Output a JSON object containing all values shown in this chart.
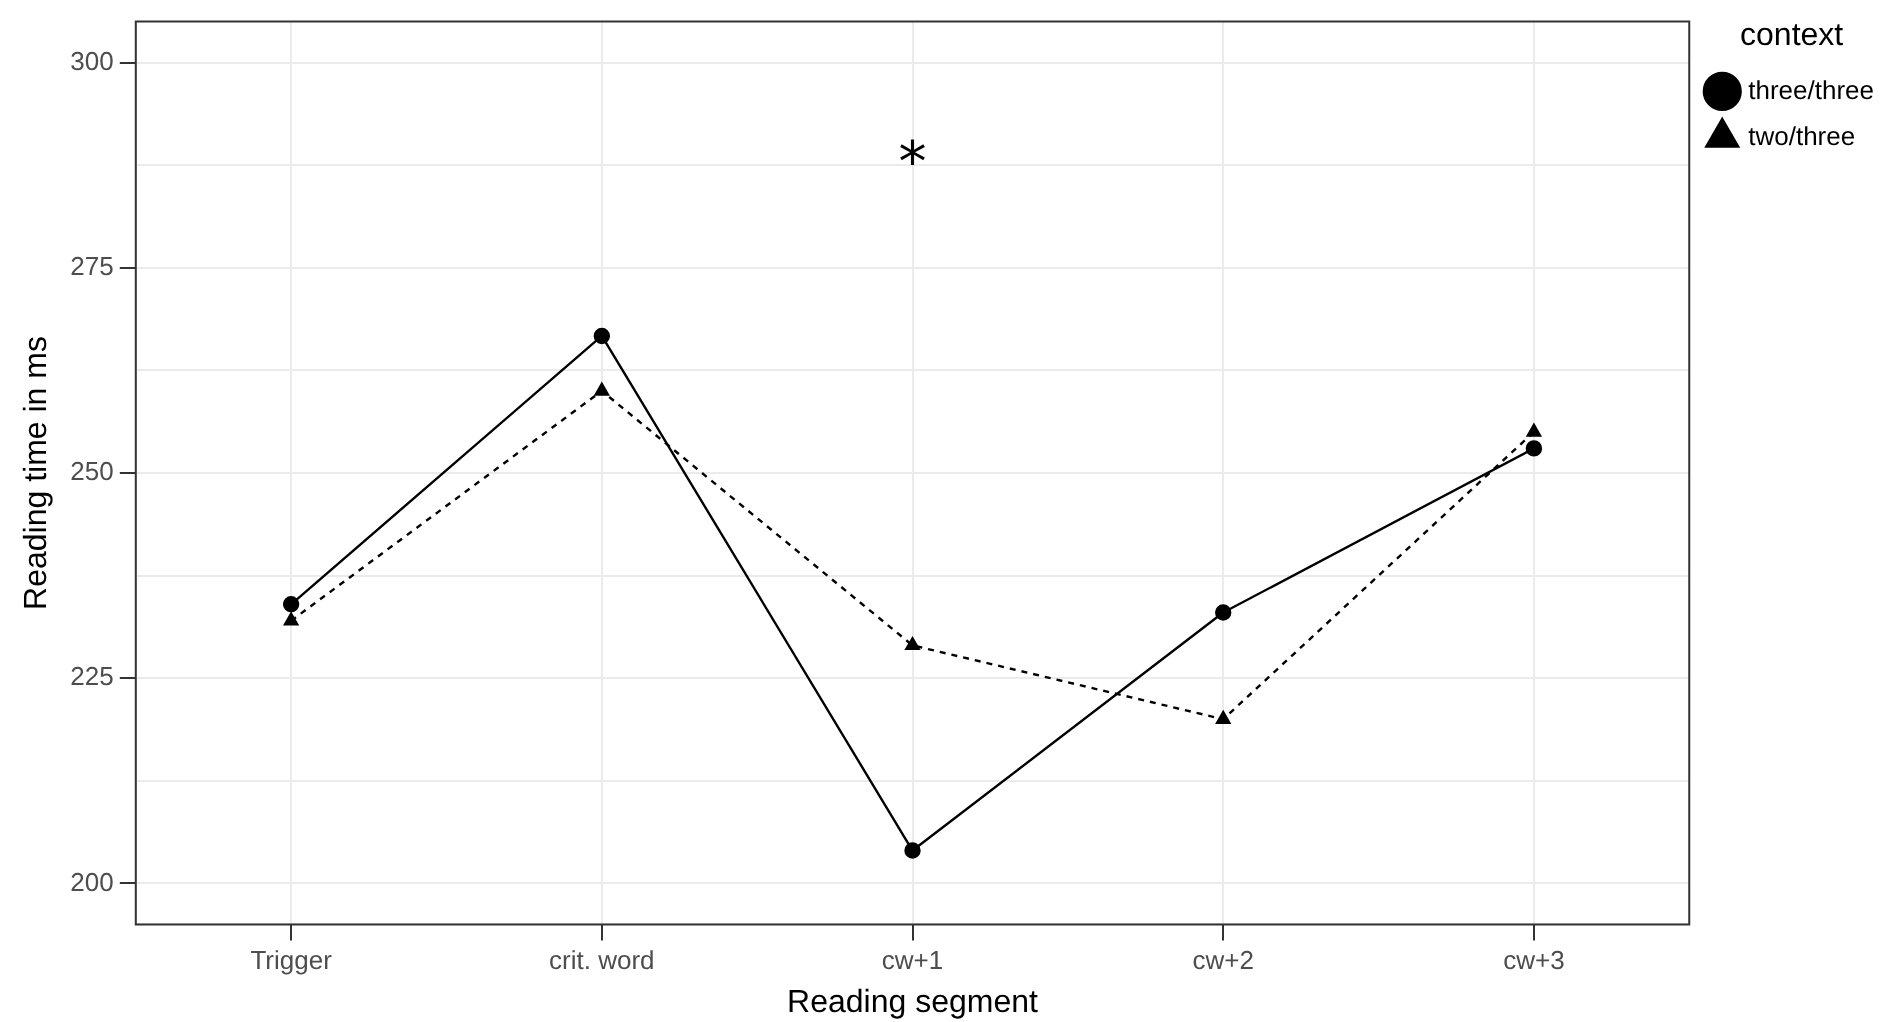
{
  "chart_data": {
    "type": "line",
    "xlabel": "Reading segment",
    "ylabel": "Reading time in ms",
    "legend_title": "context",
    "legend": "right",
    "grid": true,
    "categories": [
      "Trigger",
      "crit. word",
      "cw+1",
      "cw+2",
      "cw+3"
    ],
    "series": [
      {
        "name": "three/three",
        "color": "#000000",
        "marker": "circle",
        "line_style": "solid",
        "values": [
          234,
          266.7,
          204,
          233,
          253
        ]
      },
      {
        "name": "two/three",
        "color": "#000000",
        "marker": "triangle",
        "line_style": "dotted",
        "values": [
          232,
          260,
          229,
          220,
          255
        ]
      }
    ],
    "ylim": [
      195,
      305
    ],
    "yticks": [
      200,
      {
        "value": 212.5,
        "label": null
      },
      225,
      {
        "value": 237.5,
        "label": null
      },
      250,
      {
        "value": 262.5,
        "label": null
      },
      275,
      {
        "value": 287.5,
        "label": null
      },
      300
    ],
    "annotations": [
      "*"
    ]
  }
}
